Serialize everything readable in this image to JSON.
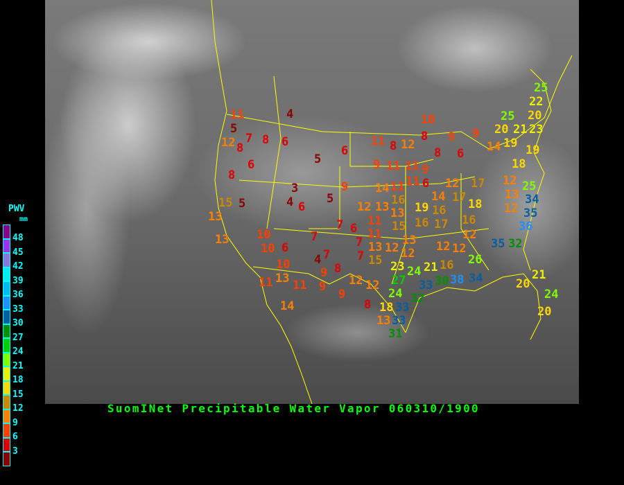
{
  "title": "SuomINet Precipitable Water Vapor 060310/1900",
  "legend": {
    "title": "PWV",
    "unit": "mm",
    "ticks": [
      "48",
      "45",
      "42",
      "39",
      "36",
      "33",
      "30",
      "27",
      "24",
      "21",
      "18",
      "15",
      "12",
      "9",
      "6",
      "3"
    ],
    "colors": [
      "#8b008b",
      "#9933ee",
      "#8877dd",
      "#00eeee",
      "#00bbee",
      "#1e90ff",
      "#005f9f",
      "#008f00",
      "#00d000",
      "#7fff00",
      "#eeee00",
      "#ffd700",
      "#cc8800",
      "#ff8000",
      "#ff4000",
      "#dd0000",
      "#8b0000"
    ]
  },
  "map": {
    "border_color": "#ffff00",
    "background": "grayscale infrared satellite image",
    "stations": [
      "4",
      "11",
      "5",
      "12",
      "7",
      "8",
      "8",
      "6",
      "6",
      "5",
      "6",
      "8",
      "3",
      "4",
      "6",
      "5",
      "9",
      "15",
      "5",
      "13",
      "13",
      "10",
      "10",
      "6",
      "10",
      "11",
      "13",
      "11",
      "9",
      "9",
      "9",
      "14",
      "4",
      "7",
      "8",
      "7",
      "7",
      "6",
      "7",
      "7",
      "11",
      "12",
      "12",
      "8",
      "13",
      "33",
      "31",
      "11",
      "8",
      "12",
      "9",
      "11",
      "11",
      "9",
      "6",
      "11",
      "14",
      "11",
      "12",
      "13",
      "16",
      "19",
      "16",
      "13",
      "15",
      "13",
      "12",
      "13",
      "12",
      "15",
      "23",
      "24",
      "27",
      "21",
      "16",
      "26",
      "30",
      "33",
      "38",
      "34",
      "24",
      "32",
      "18",
      "33",
      "10",
      "8",
      "9",
      "9",
      "8",
      "6",
      "14",
      "20",
      "19",
      "17",
      "12",
      "14",
      "17",
      "18",
      "16",
      "17",
      "16",
      "12",
      "12",
      "12",
      "35",
      "32",
      "12",
      "13",
      "25",
      "34",
      "35",
      "36",
      "18",
      "19",
      "25",
      "22",
      "20",
      "25",
      "21",
      "23",
      "20",
      "21",
      "24",
      "20",
      "12",
      "11"
    ]
  }
}
